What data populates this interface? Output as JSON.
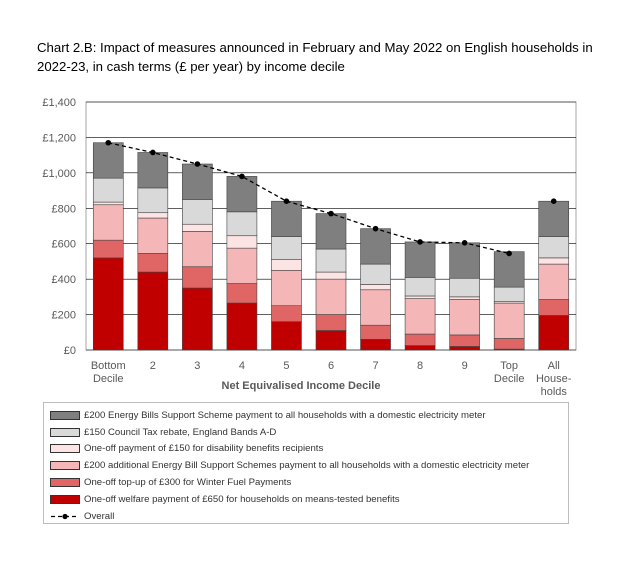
{
  "title": "Chart 2.B: Impact of measures announced in February and May 2022 on English households in 2022-23, in cash terms (£ per year) by income decile",
  "chart_data": {
    "type": "bar",
    "stacked": true,
    "xlabel": "Net Equivalised Income Decile",
    "ylabel": "",
    "ylim": [
      0,
      1400
    ],
    "yticks": [
      "£0",
      "£200",
      "£400",
      "£600",
      "£800",
      "£1,000",
      "£1,200",
      "£1,400"
    ],
    "grid": true,
    "legend_position": "bottom",
    "categories": [
      [
        "Bottom",
        "Decile"
      ],
      [
        "2"
      ],
      [
        "3"
      ],
      [
        "4"
      ],
      [
        "5"
      ],
      [
        "6"
      ],
      [
        "7"
      ],
      [
        "8"
      ],
      [
        "9"
      ],
      [
        "Top",
        "Decile"
      ],
      [
        "All",
        "House-",
        "holds"
      ]
    ],
    "series": [
      {
        "name": "One-off welfare payment of £650 for households on means-tested benefits",
        "color": "#c00000",
        "values": [
          520,
          440,
          350,
          265,
          160,
          110,
          60,
          25,
          20,
          5,
          195
        ]
      },
      {
        "name": "One-off  top-up of £300 for Winter Fuel Payments",
        "color": "#e06666",
        "values": [
          100,
          105,
          120,
          110,
          90,
          90,
          80,
          65,
          65,
          60,
          90
        ]
      },
      {
        "name": "£200 additional Energy Bill Support Schemes payment to all households with a domestic electricity meter",
        "color": "#f4b6b6",
        "values": [
          200,
          200,
          200,
          200,
          200,
          200,
          200,
          200,
          200,
          200,
          200
        ]
      },
      {
        "name": "One-off payment of £150 for  disability benefits  recipients",
        "color": "#fde4e4",
        "values": [
          15,
          30,
          40,
          70,
          60,
          40,
          30,
          15,
          15,
          10,
          35
        ]
      },
      {
        "name": "£150 Council Tax rebate, England Bands A-D",
        "color": "#d9d9d9",
        "values": [
          135,
          140,
          140,
          135,
          130,
          130,
          115,
          105,
          105,
          80,
          120
        ]
      },
      {
        "name": "£200 Energy Bills Support Scheme payment to all households with a domestic electricity meter",
        "color": "#7f7f7f",
        "values": [
          200,
          200,
          200,
          200,
          200,
          200,
          200,
          200,
          200,
          200,
          200
        ]
      }
    ],
    "overall": {
      "name": "Overall",
      "values": [
        1170,
        1115,
        1050,
        980,
        840,
        770,
        685,
        610,
        605,
        545,
        840
      ]
    }
  },
  "legend_order": [
    5,
    4,
    3,
    2,
    1,
    0
  ]
}
